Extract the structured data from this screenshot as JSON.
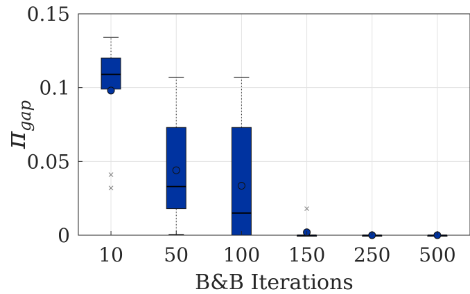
{
  "chart_data": {
    "type": "boxplot",
    "categories": [
      "10",
      "50",
      "100",
      "150",
      "250",
      "500"
    ],
    "xlabel": "B&B Iterations",
    "ylabel_main": "π",
    "ylabel_sub": "gap",
    "ylim": [
      0,
      0.15
    ],
    "yticks": [
      0,
      0.05,
      0.1,
      0.15
    ],
    "ytick_labels": [
      "0",
      "0.05",
      "0.1",
      "0.15"
    ],
    "grid": true,
    "box_color": "#0033a0",
    "outlier_color": "#808080",
    "boxes": [
      {
        "category": "10",
        "whisker_low": 0.099,
        "q1": 0.099,
        "median": 0.109,
        "q3": 0.12,
        "whisker_high": 0.134,
        "mean": 0.098,
        "outliers": [
          0.041,
          0.032
        ]
      },
      {
        "category": "50",
        "whisker_low": 0.0,
        "q1": 0.018,
        "median": 0.033,
        "q3": 0.073,
        "whisker_high": 0.107,
        "mean": 0.044,
        "outliers": []
      },
      {
        "category": "100",
        "whisker_low": 0.0,
        "q1": 0.0,
        "median": 0.015,
        "q3": 0.073,
        "whisker_high": 0.107,
        "mean": 0.0335,
        "outliers": []
      },
      {
        "category": "150",
        "whisker_low": 0.0,
        "q1": 0.0,
        "median": 0.0,
        "q3": 0.0,
        "whisker_high": 0.0,
        "mean": 0.002,
        "outliers": [
          0.018
        ]
      },
      {
        "category": "250",
        "whisker_low": 0.0,
        "q1": 0.0,
        "median": 0.0,
        "q3": 0.0,
        "whisker_high": 0.0,
        "mean": 0.0,
        "outliers": []
      },
      {
        "category": "500",
        "whisker_low": 0.0,
        "q1": 0.0,
        "median": 0.0,
        "q3": 0.0,
        "whisker_high": 0.0,
        "mean": 0.0,
        "outliers": []
      }
    ]
  }
}
